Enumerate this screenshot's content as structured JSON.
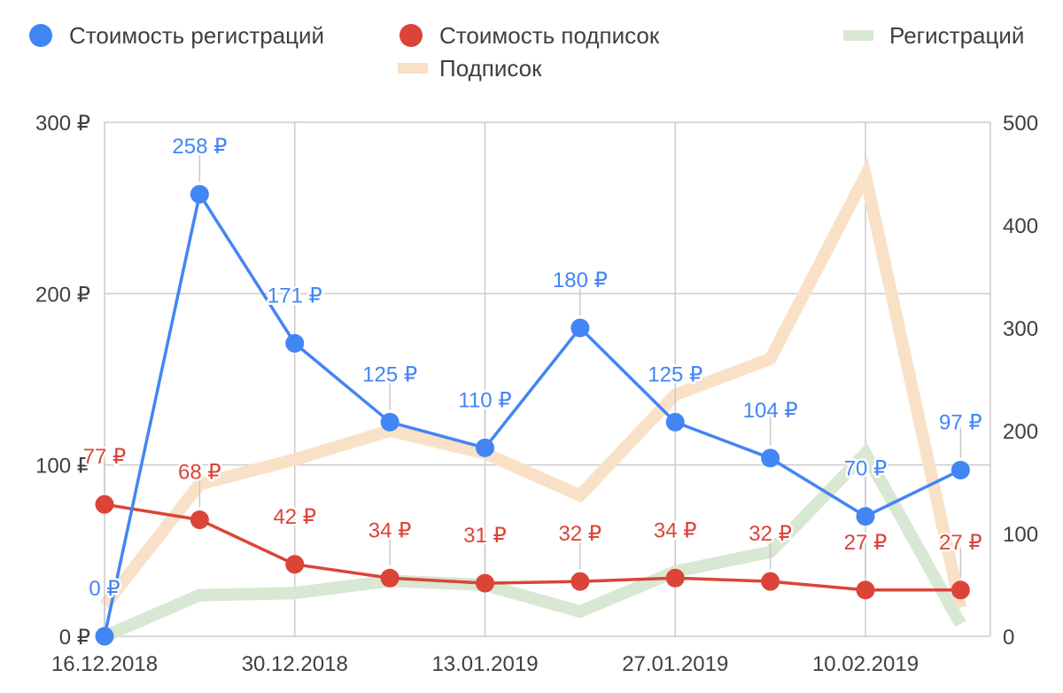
{
  "chart_data": {
    "type": "line",
    "title": "",
    "colors": {
      "cost_registrations": "#4285f4",
      "cost_subscriptions": "#db4437",
      "registrations": "#d9e8d2",
      "subscriptions": "#f9e1c8",
      "grid": "#cccccc",
      "leader": "#c8c8c8"
    },
    "x_tick_labels": [
      "16.12.2018",
      "30.12.2018",
      "13.01.2019",
      "27.01.2019",
      "10.02.2019"
    ],
    "x_ticks_dates": [
      "2018-12-16",
      "2018-12-30",
      "2019-01-13",
      "2019-01-27",
      "2019-02-10"
    ],
    "x": [
      "2018-12-16",
      "2018-12-23",
      "2018-12-30",
      "2019-01-06",
      "2019-01-13",
      "2019-01-20",
      "2019-01-27",
      "2019-02-03",
      "2019-02-10",
      "2019-02-17"
    ],
    "y_left": {
      "ylim": [
        0,
        300
      ],
      "ticks": [
        0,
        100,
        200,
        300
      ],
      "tick_labels": [
        "0 ₽",
        "100 ₽",
        "200 ₽",
        "300 ₽"
      ]
    },
    "y_right": {
      "ylim": [
        0,
        500
      ],
      "ticks": [
        0,
        100,
        200,
        300,
        400,
        500
      ],
      "tick_labels": [
        "0",
        "100",
        "200",
        "300",
        "400",
        "500"
      ]
    },
    "legend_position": "top",
    "series": [
      {
        "name": "Стоимость регистраций",
        "axis": "left",
        "style": "line-with-markers",
        "values": [
          0,
          258,
          171,
          125,
          110,
          180,
          125,
          104,
          70,
          97
        ],
        "labels": [
          "0 ₽",
          "258 ₽",
          "171 ₽",
          "125 ₽",
          "110 ₽",
          "180 ₽",
          "125 ₽",
          "104 ₽",
          "70 ₽",
          "97 ₽"
        ]
      },
      {
        "name": "Стоимость подписок",
        "axis": "left",
        "style": "line-with-markers",
        "values": [
          77,
          68,
          42,
          34,
          31,
          32,
          34,
          32,
          27,
          27
        ],
        "labels": [
          "77 ₽",
          "68 ₽",
          "42 ₽",
          "34 ₽",
          "31 ₽",
          "32 ₽",
          "34 ₽",
          "32 ₽",
          "27 ₽",
          "27 ₽"
        ]
      },
      {
        "name": "Регистраций",
        "axis": "right",
        "style": "thick-line",
        "values": [
          0,
          40,
          42,
          54,
          50,
          24,
          63,
          82,
          178,
          12
        ]
      },
      {
        "name": "Подписок",
        "axis": "right",
        "style": "thick-line",
        "values": [
          30,
          148,
          172,
          200,
          178,
          137,
          235,
          270,
          448,
          28
        ]
      }
    ]
  }
}
